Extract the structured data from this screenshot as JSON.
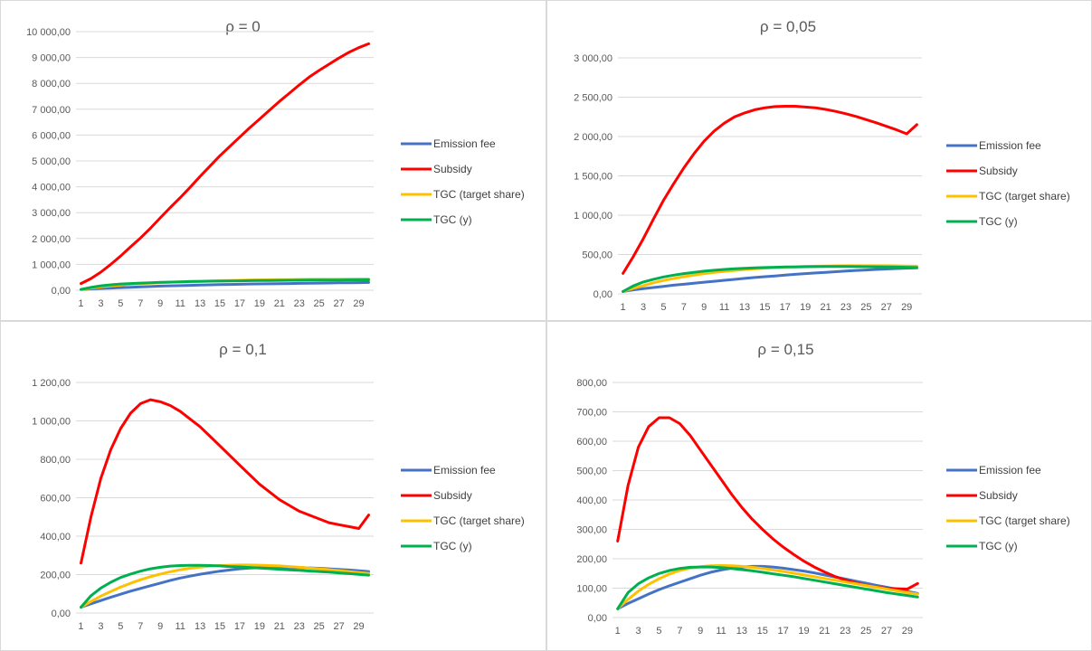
{
  "chart_data": [
    {
      "type": "line",
      "title": "ρ = 0",
      "xlabel": "",
      "ylabel": "",
      "x": [
        1,
        2,
        3,
        4,
        5,
        6,
        7,
        8,
        9,
        10,
        11,
        12,
        13,
        14,
        15,
        16,
        17,
        18,
        19,
        20,
        21,
        22,
        23,
        24,
        25,
        26,
        27,
        28,
        29,
        30
      ],
      "x_tick_labels": [
        "1",
        "3",
        "5",
        "7",
        "9",
        "11",
        "13",
        "15",
        "17",
        "19",
        "21",
        "23",
        "25",
        "27",
        "29"
      ],
      "ylim": [
        0,
        10000
      ],
      "y_ticks": [
        0,
        1000,
        2000,
        3000,
        4000,
        5000,
        6000,
        7000,
        8000,
        9000,
        10000
      ],
      "y_tick_labels": [
        "0,00",
        "1 000,00",
        "2 000,00",
        "3 000,00",
        "4 000,00",
        "5 000,00",
        "6 000,00",
        "7 000,00",
        "8 000,00",
        "9 000,00",
        "10 000,00"
      ],
      "grid": true,
      "legend_position": "right",
      "series": [
        {
          "name": "Emission fee",
          "color": "#4472c4",
          "values": [
            30,
            50,
            70,
            85,
            100,
            115,
            130,
            145,
            160,
            170,
            180,
            190,
            200,
            210,
            218,
            225,
            232,
            240,
            245,
            250,
            255,
            260,
            265,
            270,
            275,
            280,
            285,
            290,
            295,
            300
          ]
        },
        {
          "name": "Subsidy",
          "color": "#ff0000",
          "values": [
            260,
            450,
            700,
            1000,
            1320,
            1680,
            2020,
            2400,
            2800,
            3200,
            3580,
            3980,
            4400,
            4800,
            5200,
            5560,
            5920,
            6280,
            6620,
            6960,
            7300,
            7620,
            7940,
            8240,
            8500,
            8740,
            8980,
            9200,
            9380,
            9530
          ]
        },
        {
          "name": "TGC (target share)",
          "color": "#ffc000",
          "values": [
            30,
            80,
            130,
            170,
            200,
            230,
            255,
            275,
            295,
            310,
            325,
            340,
            350,
            360,
            370,
            378,
            385,
            392,
            398,
            404,
            410,
            414,
            418,
            422,
            425,
            428,
            431,
            434,
            436,
            438
          ]
        },
        {
          "name": "TGC (y)",
          "color": "#00b050",
          "values": [
            30,
            110,
            170,
            210,
            240,
            260,
            275,
            290,
            305,
            315,
            325,
            335,
            342,
            348,
            354,
            360,
            365,
            370,
            375,
            378,
            382,
            385,
            388,
            390,
            392,
            394,
            396,
            398,
            400,
            402
          ]
        }
      ]
    },
    {
      "type": "line",
      "title": "ρ = 0,05",
      "xlabel": "",
      "ylabel": "",
      "x": [
        1,
        2,
        3,
        4,
        5,
        6,
        7,
        8,
        9,
        10,
        11,
        12,
        13,
        14,
        15,
        16,
        17,
        18,
        19,
        20,
        21,
        22,
        23,
        24,
        25,
        26,
        27,
        28,
        29,
        30
      ],
      "x_tick_labels": [
        "1",
        "3",
        "5",
        "7",
        "9",
        "11",
        "13",
        "15",
        "17",
        "19",
        "21",
        "23",
        "25",
        "27",
        "29"
      ],
      "ylim": [
        0,
        3000
      ],
      "y_ticks": [
        0,
        500,
        1000,
        1500,
        2000,
        2500,
        3000
      ],
      "y_tick_labels": [
        "0,00",
        "500,00",
        "1 000,00",
        "1 500,00",
        "2 000,00",
        "2 500,00",
        "3 000,00"
      ],
      "grid": true,
      "legend_position": "right",
      "series": [
        {
          "name": "Emission fee",
          "color": "#4472c4",
          "values": [
            30,
            50,
            65,
            80,
            95,
            110,
            122,
            135,
            148,
            160,
            172,
            184,
            196,
            208,
            218,
            228,
            238,
            248,
            258,
            266,
            274,
            282,
            290,
            298,
            304,
            310,
            316,
            322,
            326,
            330
          ]
        },
        {
          "name": "Subsidy",
          "color": "#ff0000",
          "values": [
            260,
            470,
            700,
            950,
            1190,
            1400,
            1600,
            1780,
            1940,
            2070,
            2170,
            2250,
            2300,
            2340,
            2365,
            2380,
            2385,
            2385,
            2375,
            2365,
            2345,
            2320,
            2290,
            2255,
            2215,
            2175,
            2130,
            2085,
            2035,
            2150
          ]
        },
        {
          "name": "TGC (target share)",
          "color": "#ffc000",
          "values": [
            30,
            70,
            105,
            140,
            170,
            195,
            218,
            238,
            256,
            272,
            286,
            298,
            309,
            319,
            327,
            334,
            340,
            345,
            349,
            352,
            354,
            356,
            357,
            358,
            358,
            358,
            357,
            356,
            354,
            352
          ]
        },
        {
          "name": "TGC (y)",
          "color": "#00b050",
          "values": [
            30,
            100,
            150,
            185,
            215,
            238,
            258,
            274,
            288,
            300,
            310,
            318,
            325,
            330,
            335,
            338,
            341,
            343,
            345,
            346,
            347,
            347,
            347,
            346,
            345,
            344,
            342,
            340,
            338,
            335
          ]
        }
      ]
    },
    {
      "type": "line",
      "title": "ρ = 0,1",
      "xlabel": "",
      "ylabel": "",
      "x": [
        1,
        2,
        3,
        4,
        5,
        6,
        7,
        8,
        9,
        10,
        11,
        12,
        13,
        14,
        15,
        16,
        17,
        18,
        19,
        20,
        21,
        22,
        23,
        24,
        25,
        26,
        27,
        28,
        29,
        30
      ],
      "x_tick_labels": [
        "1",
        "3",
        "5",
        "7",
        "9",
        "11",
        "13",
        "15",
        "17",
        "19",
        "21",
        "23",
        "25",
        "27",
        "29"
      ],
      "ylim": [
        0,
        1200
      ],
      "y_ticks": [
        0,
        200,
        400,
        600,
        800,
        1000,
        1200
      ],
      "y_tick_labels": [
        "0,00",
        "200,00",
        "400,00",
        "600,00",
        "800,00",
        "1 000,00",
        "1 200,00"
      ],
      "grid": true,
      "legend_position": "right",
      "series": [
        {
          "name": "Emission fee",
          "color": "#4472c4",
          "values": [
            30,
            48,
            65,
            82,
            98,
            114,
            128,
            142,
            156,
            170,
            182,
            192,
            202,
            210,
            218,
            224,
            230,
            234,
            236,
            238,
            238,
            238,
            237,
            235,
            233,
            230,
            227,
            224,
            220,
            216
          ]
        },
        {
          "name": "Subsidy",
          "color": "#ff0000",
          "values": [
            260,
            500,
            700,
            850,
            960,
            1040,
            1090,
            1110,
            1100,
            1080,
            1050,
            1010,
            970,
            920,
            870,
            820,
            770,
            720,
            670,
            630,
            590,
            560,
            530,
            510,
            490,
            470,
            460,
            450,
            440,
            510
          ]
        },
        {
          "name": "TGC (target share)",
          "color": "#ffc000",
          "values": [
            30,
            60,
            88,
            112,
            135,
            155,
            173,
            189,
            203,
            215,
            225,
            233,
            239,
            244,
            247,
            249,
            250,
            250,
            249,
            247,
            245,
            242,
            238,
            234,
            230,
            226,
            221,
            216,
            211,
            206
          ]
        },
        {
          "name": "TGC (y)",
          "color": "#00b050",
          "values": [
            30,
            90,
            130,
            160,
            185,
            203,
            218,
            230,
            238,
            244,
            247,
            248,
            248,
            247,
            245,
            242,
            240,
            237,
            234,
            231,
            228,
            225,
            222,
            219,
            216,
            213,
            209,
            205,
            201,
            197
          ]
        }
      ]
    },
    {
      "type": "line",
      "title": "ρ = 0,15",
      "xlabel": "",
      "ylabel": "",
      "x": [
        1,
        2,
        3,
        4,
        5,
        6,
        7,
        8,
        9,
        10,
        11,
        12,
        13,
        14,
        15,
        16,
        17,
        18,
        19,
        20,
        21,
        22,
        23,
        24,
        25,
        26,
        27,
        28,
        29,
        30
      ],
      "x_tick_labels": [
        "1",
        "3",
        "5",
        "7",
        "9",
        "11",
        "13",
        "15",
        "17",
        "19",
        "21",
        "23",
        "25",
        "27",
        "29"
      ],
      "ylim": [
        0,
        800
      ],
      "y_ticks": [
        0,
        100,
        200,
        300,
        400,
        500,
        600,
        700,
        800
      ],
      "y_tick_labels": [
        "0,00",
        "100,00",
        "200,00",
        "300,00",
        "400,00",
        "500,00",
        "600,00",
        "700,00",
        "800,00"
      ],
      "grid": true,
      "legend_position": "right",
      "series": [
        {
          "name": "Emission fee",
          "color": "#4472c4",
          "values": [
            30,
            48,
            64,
            80,
            95,
            108,
            120,
            132,
            144,
            154,
            162,
            168,
            172,
            174,
            174,
            172,
            168,
            163,
            158,
            152,
            145,
            138,
            131,
            124,
            117,
            110,
            103,
            96,
            89,
            82
          ]
        },
        {
          "name": "Subsidy",
          "color": "#ff0000",
          "values": [
            260,
            450,
            580,
            650,
            680,
            680,
            660,
            620,
            570,
            520,
            470,
            420,
            375,
            335,
            300,
            268,
            240,
            215,
            192,
            172,
            155,
            140,
            128,
            118,
            110,
            104,
            100,
            98,
            97,
            116
          ]
        },
        {
          "name": "TGC (target share)",
          "color": "#ffc000",
          "values": [
            30,
            62,
            90,
            113,
            132,
            148,
            160,
            168,
            173,
            176,
            177,
            176,
            174,
            171,
            167,
            162,
            157,
            151,
            145,
            139,
            133,
            127,
            121,
            115,
            109,
            103,
            97,
            91,
            85,
            80
          ]
        },
        {
          "name": "TGC (y)",
          "color": "#00b050",
          "values": [
            30,
            85,
            115,
            135,
            150,
            160,
            167,
            171,
            172,
            172,
            170,
            167,
            163,
            159,
            154,
            149,
            144,
            139,
            133,
            127,
            121,
            115,
            109,
            103,
            97,
            91,
            85,
            80,
            75,
            70
          ]
        }
      ]
    }
  ]
}
